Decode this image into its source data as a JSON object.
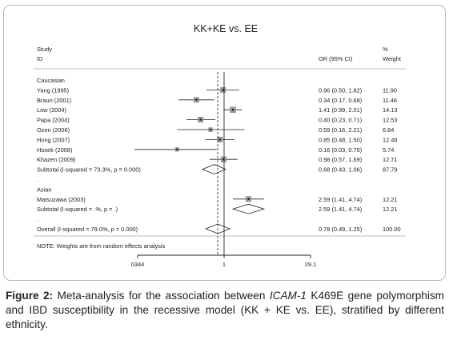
{
  "chart_data": {
    "type": "forest",
    "title": "KK+KE vs. EE",
    "header": {
      "study_1": "Study",
      "study_2": "ID",
      "or_col": "OR (95% CI)",
      "weight_1": "%",
      "weight_2": "Weight"
    },
    "x_scale": "log",
    "xlim": [
      0.0344,
      29.1
    ],
    "xticks": [
      "0344",
      "1",
      "29.1"
    ],
    "rows": [
      {
        "kind": "group",
        "label": "Caucasian"
      },
      {
        "kind": "study",
        "label": "Yang (1995)",
        "or": 0.96,
        "lo": 0.5,
        "hi": 1.82,
        "ci_text": "0.96 (0.50, 1.82)",
        "weight": "11.90"
      },
      {
        "kind": "study",
        "label": "Braun (2001)",
        "or": 0.34,
        "lo": 0.17,
        "hi": 0.68,
        "ci_text": "0.34 (0.17, 0.68)",
        "weight": "11.46"
      },
      {
        "kind": "study",
        "label": "Low (2004)",
        "or": 1.41,
        "lo": 0.99,
        "hi": 2.01,
        "ci_text": "1.41 (0.99, 2.01)",
        "weight": "14.13"
      },
      {
        "kind": "study",
        "label": "Papa (2004)",
        "or": 0.4,
        "lo": 0.23,
        "hi": 0.71,
        "ci_text": "0.40 (0.23, 0.71)",
        "weight": "12.53"
      },
      {
        "kind": "study",
        "label": "Ozen (2006)",
        "or": 0.59,
        "lo": 0.16,
        "hi": 2.21,
        "ci_text": "0.59 (0.16, 2.21)",
        "weight": "6.84"
      },
      {
        "kind": "study",
        "label": "Hong (2007)",
        "or": 0.85,
        "lo": 0.48,
        "hi": 1.5,
        "ci_text": "0.85 (0.48, 1.50)",
        "weight": "12.48"
      },
      {
        "kind": "study",
        "label": "Hosek (2008)",
        "or": 0.16,
        "lo": 0.03,
        "hi": 0.75,
        "ci_text": "0.16 (0.03, 0.75)",
        "weight": "5.74"
      },
      {
        "kind": "study",
        "label": "Khazen (2009)",
        "or": 0.98,
        "lo": 0.57,
        "hi": 1.69,
        "ci_text": "0.98 (0.57, 1.69)",
        "weight": "12.71"
      },
      {
        "kind": "subtotal",
        "label": "Subtotal  (I-squared = 73.3%, p = 0.000)",
        "or": 0.68,
        "lo": 0.43,
        "hi": 1.06,
        "ci_text": "0.68 (0.43, 1.06)",
        "weight": "87.79"
      },
      {
        "kind": "dot",
        "label": "."
      },
      {
        "kind": "group",
        "label": "Asian"
      },
      {
        "kind": "study",
        "label": "Matsuzawa (2003)",
        "or": 2.59,
        "lo": 1.41,
        "hi": 4.74,
        "ci_text": "2.59 (1.41, 4.74)",
        "weight": "12.21"
      },
      {
        "kind": "subtotal",
        "label": "Subtotal  (I-squared = .%, p = .)",
        "or": 2.59,
        "lo": 1.41,
        "hi": 4.74,
        "ci_text": "2.59 (1.41, 4.74)",
        "weight": "12.21"
      },
      {
        "kind": "dot",
        "label": "."
      },
      {
        "kind": "overall",
        "label": "Overall  (I-squared = 79.0%, p = 0.000)",
        "or": 0.78,
        "lo": 0.49,
        "hi": 1.25,
        "ci_text": "0.78 (0.49, 1.25)",
        "weight": "100.00"
      }
    ],
    "note": "NOTE: Weights are from random effects analysis",
    "colors": {
      "lines": "#222222",
      "box": "#9a9a9a",
      "divider": "#bdbdbd"
    }
  },
  "caption": {
    "label": "Figure 2:",
    "text_1": " Meta-analysis for the association between ",
    "gene": "ICAM-1",
    "text_2": " K469E gene polymorphism and IBD susceptibility in the recessive model (KK + KE vs. EE), stratified by different ethnicity."
  }
}
